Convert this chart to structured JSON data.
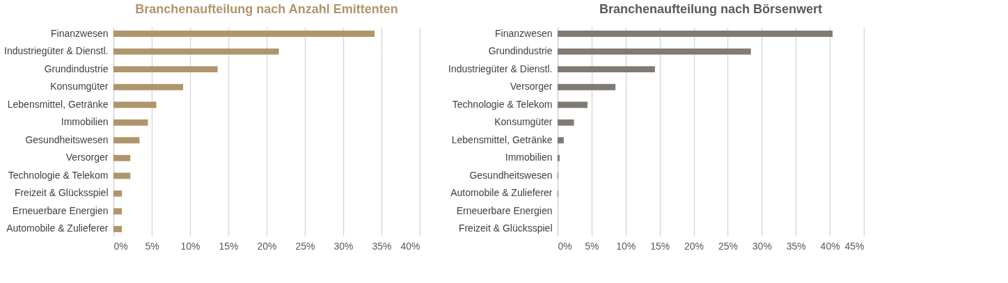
{
  "chart_data": [
    {
      "type": "bar",
      "orientation": "horizontal",
      "title": "Branchenaufteilung nach Anzahl Emittenten",
      "categories": [
        "Finanzwesen",
        "Industriegüter & Dienstl.",
        "Grundindustrie",
        "Konsumgüter",
        "Lebensmittel, Getränke",
        "Immobilien",
        "Gesundheitswesen",
        "Versorger",
        "Technologie & Telekom",
        "Freizeit & Glücksspiel",
        "Erneuerbare Energien",
        "Automobile & Zulieferer"
      ],
      "values": [
        34.1,
        21.6,
        13.6,
        9.1,
        5.6,
        4.5,
        3.4,
        2.2,
        2.2,
        1.1,
        1.1,
        1.1
      ],
      "color": "#b0956c",
      "xlim": [
        0,
        40
      ],
      "xticks": [
        {
          "value": 0,
          "label": "0%"
        },
        {
          "value": 5,
          "label": "5%"
        },
        {
          "value": 10,
          "label": "10%"
        },
        {
          "value": 15,
          "label": "15%"
        },
        {
          "value": 20,
          "label": "20%"
        },
        {
          "value": 25,
          "label": "25%"
        },
        {
          "value": 30,
          "label": "30%"
        },
        {
          "value": 35,
          "label": "35%"
        },
        {
          "value": 40,
          "label": "40%"
        }
      ],
      "grid": "x"
    },
    {
      "type": "bar",
      "orientation": "horizontal",
      "title": "Branchenaufteilung nach Börsenwert",
      "categories": [
        "Finanzwesen",
        "Grundindustrie",
        "Industriegüter & Dienstl.",
        "Versorger",
        "Technologie & Telekom",
        "Konsumgüter",
        "Lebensmittel, Getränke",
        "Immobilien",
        "Gesundheitswesen",
        "Automobile & Zulieferer",
        "Erneuerbare Energien",
        "Freizeit & Glücksspiel"
      ],
      "values": [
        40.4,
        28.4,
        14.3,
        8.5,
        4.4,
        2.4,
        0.9,
        0.3,
        0.1,
        0.1,
        0,
        0
      ],
      "color": "#7f7a74",
      "xlim": [
        0,
        45
      ],
      "xticks": [
        {
          "value": 0,
          "label": "0%"
        },
        {
          "value": 5,
          "label": "5%"
        },
        {
          "value": 10,
          "label": "10%"
        },
        {
          "value": 15,
          "label": "15%"
        },
        {
          "value": 20,
          "label": "20%"
        },
        {
          "value": 25,
          "label": "25%"
        },
        {
          "value": 30,
          "label": "30%"
        },
        {
          "value": 35,
          "label": "35%"
        },
        {
          "value": 40,
          "label": "40%"
        },
        {
          "value": 45,
          "label": "45%"
        }
      ],
      "grid": "x"
    }
  ]
}
